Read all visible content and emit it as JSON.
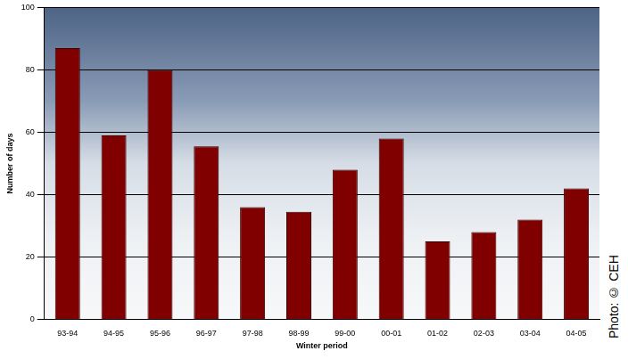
{
  "chart_data": {
    "type": "bar",
    "x_label": "Winter period",
    "y_label": "Number of days",
    "annotation": "Photo: © CEH",
    "categories": [
      "93-94",
      "94-95",
      "95-96",
      "96-97",
      "97-98",
      "98-99",
      "99-00",
      "00-01",
      "01-02",
      "02-03",
      "03-04",
      "04-05"
    ],
    "values": [
      87,
      59,
      80,
      55.5,
      36,
      34.5,
      48,
      58,
      25,
      28,
      32,
      42
    ],
    "color": "#800000",
    "ylim": [
      0,
      100
    ],
    "yticks": [
      0,
      20,
      40,
      60,
      80,
      100
    ],
    "grid": true
  }
}
